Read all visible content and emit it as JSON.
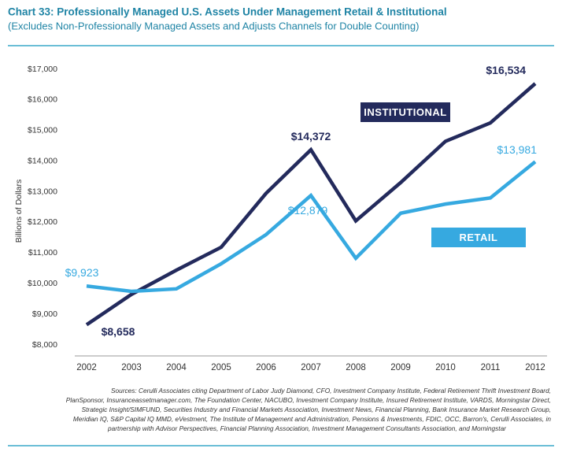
{
  "chart_data": {
    "type": "line",
    "title": "Chart 33: Professionally Managed U.S. Assets Under Management Retail & Institutional",
    "subtitle": "(Excludes Non-Professionally Managed Assets and Adjusts Channels for Double Counting)",
    "y_label": "Billions of Dollars",
    "categories": [
      "2002",
      "2003",
      "2004",
      "2005",
      "2006",
      "2007",
      "2008",
      "2009",
      "2010",
      "2011",
      "2012"
    ],
    "series": [
      {
        "name": "INSTITUTIONAL",
        "color": "#232a5c",
        "values": [
          8658,
          9650,
          10440,
          11190,
          12950,
          14372,
          12050,
          13300,
          14650,
          15250,
          16534
        ],
        "value_labels": [
          "$8,658",
          null,
          null,
          null,
          null,
          "$14,372",
          null,
          null,
          null,
          null,
          "$16,534"
        ]
      },
      {
        "name": "RETAIL",
        "color": "#36a9e0",
        "values": [
          9923,
          9750,
          9830,
          10650,
          11600,
          12879,
          10830,
          12300,
          12600,
          12800,
          13981
        ],
        "value_labels": [
          "$9,923",
          null,
          null,
          null,
          null,
          "$12,879",
          null,
          null,
          null,
          null,
          "$13,981"
        ]
      }
    ],
    "ylim": [
      8000,
      17000
    ],
    "yticks": [
      {
        "value": 8000,
        "label": "$8,000"
      },
      {
        "value": 9000,
        "label": "$9,000"
      },
      {
        "value": 10000,
        "label": "$10,000"
      },
      {
        "value": 11000,
        "label": "$11,000"
      },
      {
        "value": 12000,
        "label": "$12,000"
      },
      {
        "value": 13000,
        "label": "$13,000"
      },
      {
        "value": 14000,
        "label": "$14,000"
      },
      {
        "value": 15000,
        "label": "$15,000"
      },
      {
        "value": 16000,
        "label": "$16,000"
      },
      {
        "value": 17000,
        "label": "$17,000"
      }
    ],
    "grid": false,
    "sources": [
      "Sources:  Cerulli Associates citing Department of Labor Judy Diamond, CFO, Investment Company Institute, Federal Retirement Thrift Investment Board,",
      "PlanSponsor, Insuranceassetmanager.com, The Foundation Center, NACUBO, Investment Company Institute, Insured Retirement Institute, VARDS, Morningstar Direct,",
      "Strategic Insight/SIMFUND, Securities Industry and Financial Markets Association, Investment News, Financial Planning, Bank Insurance Market Research Group,",
      "Meridian IQ, S&P Capital IQ MMD, eVestment, The Institute of Management and Administration, Pensions & Investments, FDIC, OCC, Barron's, Cerulli Associates, in",
      "partnership with Advisor Perspectives, Financial Planning Association, Investment Management Consultants Association, and Morningstar"
    ]
  }
}
